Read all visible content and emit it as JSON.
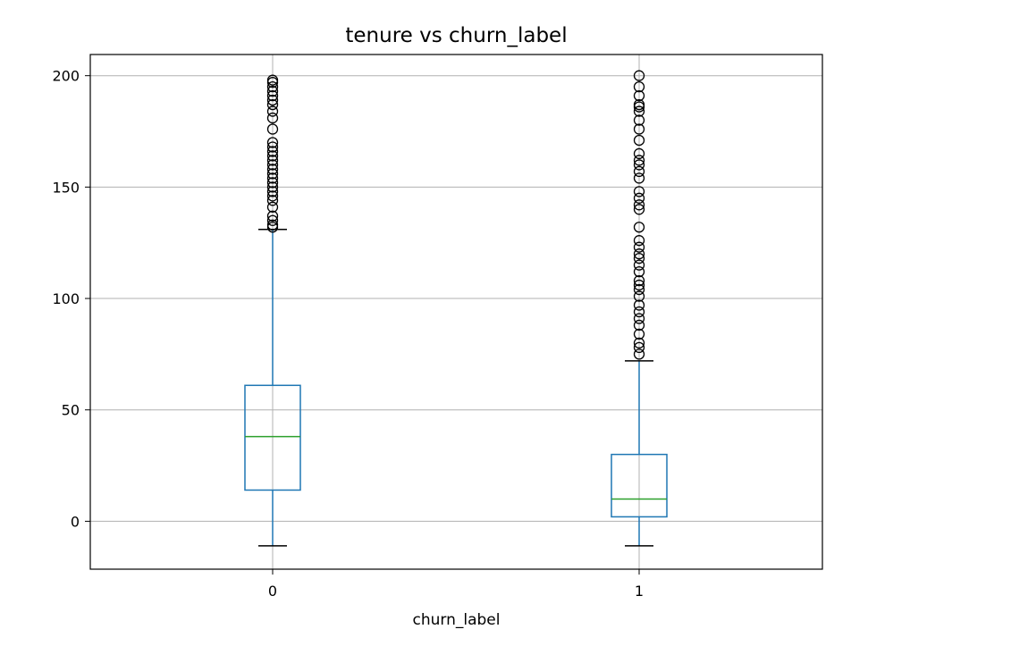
{
  "chart_data": {
    "type": "box",
    "title": "tenure vs churn_label",
    "xlabel": "churn_label",
    "ylabel": "",
    "categories": [
      "0",
      "1"
    ],
    "yticks": [
      0,
      50,
      100,
      150,
      200
    ],
    "ylim": [
      -21.5,
      209.5
    ],
    "grid": true,
    "colors": {
      "box": "#1f77b4",
      "median": "#2ca02c",
      "whisker": "#1f77b4",
      "cap": "#000000",
      "flier": "#000000",
      "grid": "#b0b0b0"
    },
    "boxes": [
      {
        "category": "0",
        "whisker_low": -11,
        "q1": 14,
        "median": 38,
        "q3": 61,
        "whisker_high": 131,
        "fliers": [
          132,
          133,
          135,
          137,
          141,
          144,
          146,
          148,
          150,
          152,
          154,
          156,
          158,
          160,
          162,
          164,
          166,
          168,
          170,
          176,
          181,
          184,
          187,
          189,
          191,
          193,
          195,
          197,
          198
        ]
      },
      {
        "category": "1",
        "whisker_low": -11,
        "q1": 2,
        "median": 10,
        "q3": 30,
        "whisker_high": 72,
        "fliers": [
          75,
          78,
          80,
          84,
          88,
          91,
          94,
          97,
          101,
          104,
          106,
          108,
          112,
          115,
          118,
          120,
          123,
          126,
          132,
          140,
          142,
          145,
          148,
          154,
          157,
          160,
          162,
          165,
          171,
          176,
          180,
          184,
          186,
          187,
          191,
          195,
          200
        ]
      }
    ]
  }
}
